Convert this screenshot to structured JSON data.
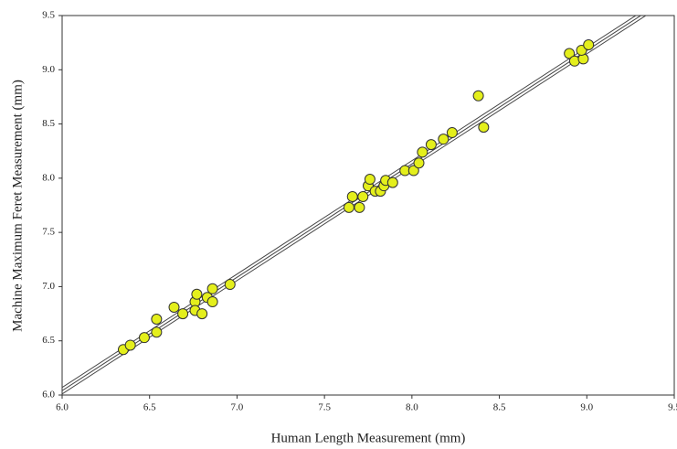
{
  "chart_data": {
    "type": "scatter",
    "x_label": "Human Length Measurement (mm)",
    "y_label": "Machine Maximum Feret Measurement (mm)",
    "color": "#e4ef1c",
    "line_color": "#444444",
    "xlim": [
      6.0,
      9.5
    ],
    "ylim": [
      6.0,
      9.5
    ],
    "xticks": [
      {
        "value": 6.0,
        "label": "6.0"
      },
      {
        "value": 6.5,
        "label": "6.5"
      },
      {
        "value": 7.0,
        "label": "7.0"
      },
      {
        "value": 7.5,
        "label": "7.5"
      },
      {
        "value": 8.0,
        "label": "8.0"
      },
      {
        "value": 8.5,
        "label": "8.5"
      },
      {
        "value": 9.0,
        "label": "9.0"
      },
      {
        "value": 9.5,
        "label": "9.5"
      }
    ],
    "yticks": [
      {
        "value": 6.0,
        "label": "6.0"
      },
      {
        "value": 6.5,
        "label": "6.5"
      },
      {
        "value": 7.0,
        "label": "7.0"
      },
      {
        "value": 7.5,
        "label": "7.5"
      },
      {
        "value": 8.0,
        "label": "8.0"
      },
      {
        "value": 8.5,
        "label": "8.5"
      },
      {
        "value": 9.0,
        "label": "9.0"
      },
      {
        "value": 9.5,
        "label": "9.5"
      }
    ],
    "x": [
      6.35,
      6.39,
      6.47,
      6.54,
      6.54,
      6.64,
      6.69,
      6.76,
      6.77,
      6.76,
      6.8,
      6.83,
      6.86,
      6.86,
      6.96,
      7.64,
      7.66,
      7.7,
      7.72,
      7.75,
      7.76,
      7.79,
      7.82,
      7.84,
      7.85,
      7.89,
      7.96,
      8.01,
      8.04,
      8.06,
      8.11,
      8.18,
      8.23,
      8.38,
      8.41,
      8.9,
      8.93,
      8.98,
      8.97,
      9.01
    ],
    "values": [
      6.42,
      6.46,
      6.53,
      6.7,
      6.58,
      6.81,
      6.75,
      6.86,
      6.93,
      6.78,
      6.75,
      6.9,
      6.98,
      6.86,
      7.02,
      7.73,
      7.83,
      7.73,
      7.83,
      7.93,
      7.99,
      7.88,
      7.88,
      7.93,
      7.98,
      7.96,
      8.07,
      8.07,
      8.14,
      8.24,
      8.31,
      8.36,
      8.42,
      8.76,
      8.47,
      9.15,
      9.08,
      9.1,
      9.18,
      9.23
    ],
    "fit_lines": [
      {
        "x": [
          6.0,
          9.5
        ],
        "values": [
          6.07,
          9.73
        ]
      },
      {
        "x": [
          6.0,
          9.5
        ],
        "values": [
          6.04,
          9.7
        ]
      },
      {
        "x": [
          6.0,
          9.5
        ],
        "values": [
          6.01,
          9.67
        ]
      }
    ]
  }
}
